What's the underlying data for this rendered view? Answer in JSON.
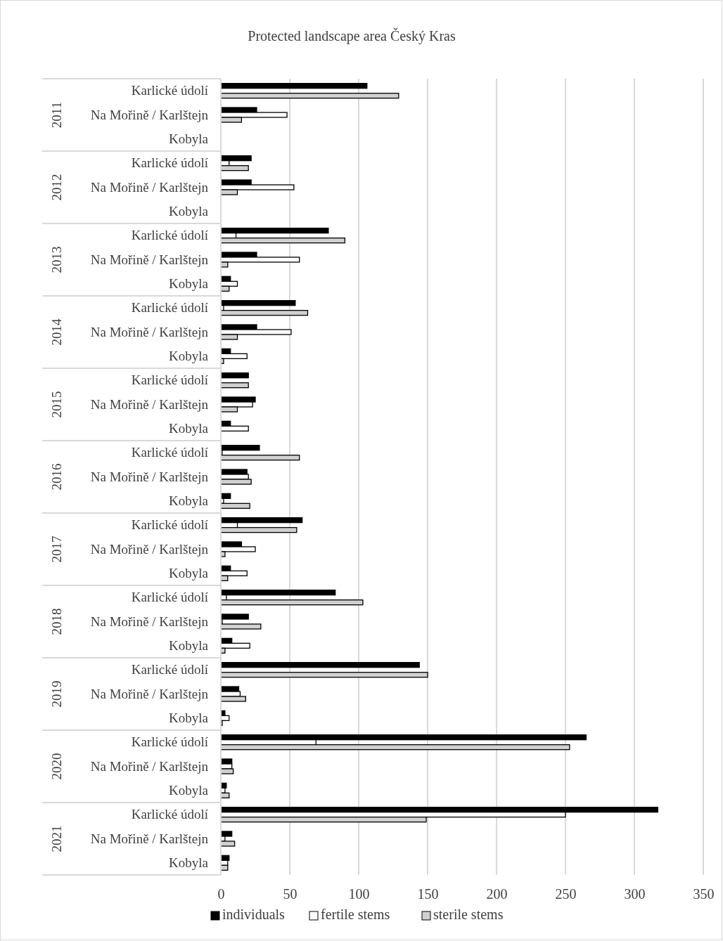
{
  "chart_data": {
    "type": "bar",
    "orientation": "horizontal",
    "title": "Protected landscape area Český Kras",
    "categories": [
      "Karlické údolí",
      "Na Mořině / Karlštejn",
      "Kobyla",
      "Karlické údolí",
      "Na Mořině / Karlštejn",
      "Kobyla",
      "Karlické údolí",
      "Na Mořině / Karlštejn",
      "Kobyla",
      "Karlické údolí",
      "Na Mořině / Karlštejn",
      "Kobyla",
      "Karlické údolí",
      "Na Mořině / Karlštejn",
      "Kobyla",
      "Karlické údolí",
      "Na Mořině / Karlštejn",
      "Kobyla",
      "Karlické údolí",
      "Na Mořině / Karlštejn",
      "Kobyla",
      "Karlické údolí",
      "Na Mořině / Karlštejn",
      "Kobyla",
      "Karlické údolí",
      "Na Mořině / Karlštejn",
      "Kobyla",
      "Karlické údolí",
      "Na Mořině / Karlštejn",
      "Kobyla",
      "Karlické údolí",
      "Na Mořině / Karlštejn",
      "Kobyla"
    ],
    "annotations": [
      "2011",
      "2012",
      "2013",
      "2014",
      "2015",
      "2016",
      "2017",
      "2018",
      "2019",
      "2020",
      "2021"
    ],
    "series": [
      {
        "name": "individuals",
        "color": "#000000",
        "values": [
          106,
          26,
          null,
          22,
          22,
          null,
          78,
          26,
          7,
          54,
          26,
          7,
          20,
          25,
          7,
          28,
          19,
          7,
          59,
          15,
          7,
          83,
          20,
          8,
          144,
          13,
          3,
          265,
          8,
          4,
          317,
          8,
          6
        ]
      },
      {
        "name": "fertile stems",
        "color": "#ffffff",
        "values": [
          0,
          48,
          null,
          6,
          53,
          null,
          11,
          57,
          12,
          2,
          51,
          19,
          0,
          23,
          20,
          1,
          20,
          2,
          12,
          25,
          19,
          4,
          1,
          21,
          0,
          14,
          6,
          69,
          8,
          3,
          250,
          3,
          5
        ]
      },
      {
        "name": "sterile stems",
        "color": "#d0d0d0",
        "values": [
          129,
          15,
          null,
          20,
          12,
          null,
          90,
          5,
          6,
          63,
          12,
          2,
          20,
          12,
          0,
          57,
          22,
          21,
          55,
          3,
          5,
          103,
          29,
          3,
          150,
          18,
          1,
          253,
          9,
          6,
          149,
          10,
          5
        ]
      }
    ],
    "xlim": [
      0,
      350
    ],
    "xticks": [
      0,
      50,
      100,
      150,
      200,
      250,
      300,
      350
    ],
    "grid": "x",
    "legend": "bottom"
  }
}
